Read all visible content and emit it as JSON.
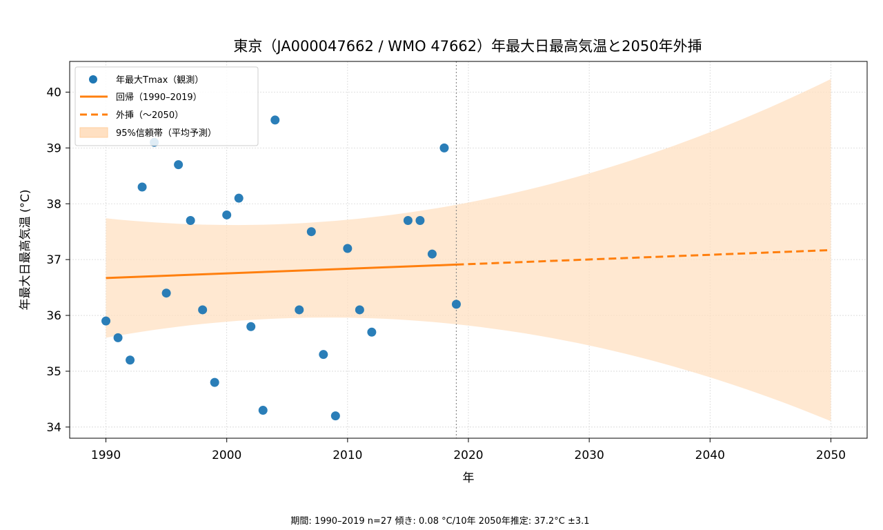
{
  "chart_data": {
    "type": "scatter",
    "title": "東京（JA000047662 / WMO 47662）年最大日最高気温と2050年外挿",
    "xlabel": "年",
    "ylabel": "年最大日最高気温 (°C)",
    "xlim": [
      1987,
      2053
    ],
    "ylim": [
      33.8,
      40.55
    ],
    "x_ticks": [
      1990,
      2000,
      2010,
      2020,
      2030,
      2040,
      2050
    ],
    "y_ticks": [
      34,
      35,
      36,
      37,
      38,
      39,
      40
    ],
    "grid": true,
    "legend_position": "top-left",
    "colors": {
      "points": "#1f77b4",
      "line": "#ff7f0e",
      "band": "#ffe0c2"
    },
    "series": [
      {
        "name": "年最大Tmax（観測）",
        "kind": "scatter",
        "points": [
          [
            1990,
            35.9
          ],
          [
            1991,
            35.6
          ],
          [
            1992,
            35.2
          ],
          [
            1993,
            38.3
          ],
          [
            1994,
            39.1
          ],
          [
            1995,
            36.4
          ],
          [
            1996,
            38.7
          ],
          [
            1997,
            37.7
          ],
          [
            1998,
            36.1
          ],
          [
            1999,
            34.8
          ],
          [
            2000,
            37.8
          ],
          [
            2001,
            38.1
          ],
          [
            2002,
            35.8
          ],
          [
            2003,
            34.3
          ],
          [
            2004,
            39.5
          ],
          [
            2006,
            36.1
          ],
          [
            2007,
            37.5
          ],
          [
            2008,
            35.3
          ],
          [
            2009,
            34.2
          ],
          [
            2010,
            37.2
          ],
          [
            2011,
            36.1
          ],
          [
            2012,
            35.7
          ],
          [
            2015,
            37.7
          ],
          [
            2016,
            37.7
          ],
          [
            2017,
            37.1
          ],
          [
            2018,
            39.0
          ],
          [
            2019,
            36.2
          ]
        ]
      },
      {
        "name": "回帰（1990–2019）",
        "kind": "line",
        "x": [
          1990,
          2019
        ],
        "y": [
          36.67,
          36.91
        ]
      },
      {
        "name": "外挿（〜2050）",
        "kind": "dashed-line",
        "x": [
          2019,
          2050
        ],
        "y": [
          36.91,
          37.17
        ]
      },
      {
        "name": "95%信頼帯（平均予測）",
        "kind": "band",
        "x": [
          1990,
          2019,
          2050
        ],
        "lower": [
          35.6,
          35.75,
          34.1
        ],
        "upper": [
          37.74,
          38.05,
          40.23
        ]
      }
    ],
    "reference_line_x": 2019
  },
  "footer": "期間: 1990–2019  n=27  傾き: 0.08 °C/10年  2050年推定: 37.2°C ±3.1"
}
